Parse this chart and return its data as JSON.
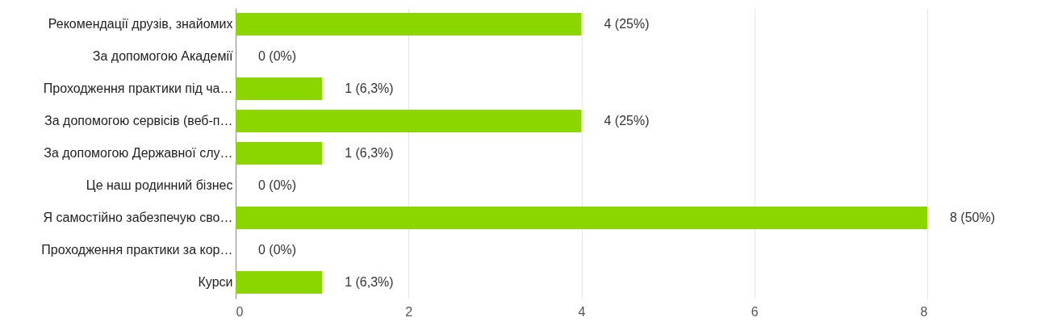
{
  "chart_data": {
    "type": "bar",
    "orientation": "horizontal",
    "categories": [
      "Рекомендації друзів, знайомих",
      "За допомогою Академії",
      "Проходження практики під ча…",
      "За допомогою сервісів (веб-п…",
      "За допомогою Державної слу…",
      "Це наш родинний бізнес",
      "Я самостійно забезпечую сво…",
      "Проходження практики за кор…",
      "Курси"
    ],
    "values": [
      4,
      0,
      1,
      4,
      1,
      0,
      8,
      0,
      1
    ],
    "value_labels": [
      "4 (25%)",
      "0 (0%)",
      "1 (6,3%)",
      "4 (25%)",
      "1 (6,3%)",
      "0 (0%)",
      "8 (50%)",
      "0 (0%)",
      "1 (6,3%)"
    ],
    "color": "#8cd600",
    "xlim": [
      0,
      8
    ],
    "xticks": [
      0,
      2,
      4,
      6,
      8
    ],
    "grid": "x"
  }
}
